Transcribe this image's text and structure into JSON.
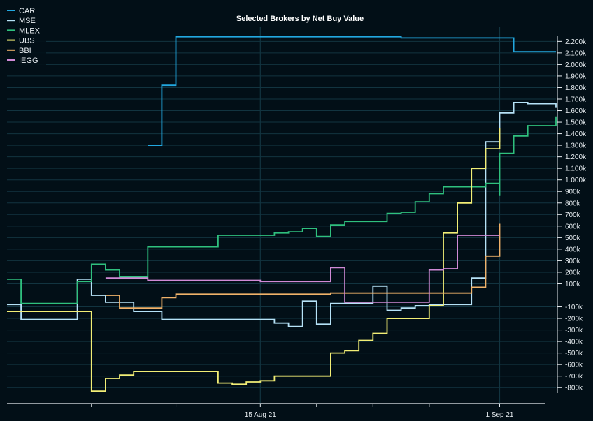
{
  "chart_data": {
    "type": "line",
    "step": true,
    "title": "Selected Brokers by Net Buy Value",
    "xlabel": "",
    "ylabel": "",
    "ylim": [
      -850,
      2350
    ],
    "xlim": [
      "2021-07-28",
      "2021-09-05"
    ],
    "y_axis_position": "right",
    "y_ticks": [
      -800,
      -700,
      -600,
      -500,
      -400,
      -300,
      -200,
      -100,
      100,
      200,
      300,
      400,
      500,
      600,
      700,
      800,
      900,
      1000,
      1100,
      1200,
      1300,
      1400,
      1500,
      1600,
      1700,
      1800,
      1900,
      2000,
      2100,
      2200
    ],
    "y_tick_labels": [
      "-800k",
      "-700k",
      "-600k",
      "-500k",
      "-400k",
      "-300k",
      "-200k",
      "-100k",
      "100k",
      "200k",
      "300k",
      "400k",
      "500k",
      "600k",
      "700k",
      "800k",
      "900k",
      "1.000k",
      "1.100k",
      "1.200k",
      "1.300k",
      "1.400k",
      "1.500k",
      "1.600k",
      "1.700k",
      "1.800k",
      "1.900k",
      "2.000k",
      "2.100k",
      "2.200k"
    ],
    "x_tick_labels": [
      {
        "date": "2021-08-15",
        "label": "15 Aug 21"
      },
      {
        "date": "2021-09-01",
        "label": "1 Sep 21"
      }
    ],
    "x_minor_ticks": [
      "2021-08-03",
      "2021-08-09",
      "2021-08-15",
      "2021-08-19",
      "2021-08-23",
      "2021-08-27",
      "2021-09-01"
    ],
    "grid": true,
    "legend": "top-left",
    "series": [
      {
        "name": "CAR",
        "color": "#22a8e0",
        "points": [
          [
            "2021-08-07",
            1300
          ],
          [
            "2021-08-08",
            1300
          ],
          [
            "2021-08-08",
            1820
          ],
          [
            "2021-08-09",
            1820
          ],
          [
            "2021-08-09",
            2240
          ],
          [
            "2021-08-25",
            2240
          ],
          [
            "2021-08-25",
            2230
          ],
          [
            "2021-09-02",
            2230
          ],
          [
            "2021-09-02",
            2110
          ],
          [
            "2021-09-05",
            2110
          ]
        ]
      },
      {
        "name": "MSE",
        "color": "#b6e2f7",
        "points": [
          [
            "2021-07-28",
            -80
          ],
          [
            "2021-07-29",
            -80
          ],
          [
            "2021-07-29",
            -210
          ],
          [
            "2021-08-02",
            -210
          ],
          [
            "2021-08-02",
            140
          ],
          [
            "2021-08-03",
            140
          ],
          [
            "2021-08-03",
            0
          ],
          [
            "2021-08-04",
            0
          ],
          [
            "2021-08-04",
            -60
          ],
          [
            "2021-08-06",
            -60
          ],
          [
            "2021-08-06",
            -140
          ],
          [
            "2021-08-08",
            -140
          ],
          [
            "2021-08-08",
            -210
          ],
          [
            "2021-08-16",
            -210
          ],
          [
            "2021-08-16",
            -240
          ],
          [
            "2021-08-17",
            -240
          ],
          [
            "2021-08-17",
            -270
          ],
          [
            "2021-08-18",
            -270
          ],
          [
            "2021-08-18",
            -50
          ],
          [
            "2021-08-19",
            -50
          ],
          [
            "2021-08-19",
            -250
          ],
          [
            "2021-08-20",
            -250
          ],
          [
            "2021-08-20",
            -70
          ],
          [
            "2021-08-23",
            -70
          ],
          [
            "2021-08-23",
            80
          ],
          [
            "2021-08-24",
            80
          ],
          [
            "2021-08-24",
            -130
          ],
          [
            "2021-08-25",
            -130
          ],
          [
            "2021-08-25",
            -110
          ],
          [
            "2021-08-26",
            -110
          ],
          [
            "2021-08-26",
            -90
          ],
          [
            "2021-08-27",
            -90
          ],
          [
            "2021-08-27",
            -80
          ],
          [
            "2021-08-30",
            -80
          ],
          [
            "2021-08-30",
            150
          ],
          [
            "2021-08-31",
            150
          ],
          [
            "2021-08-31",
            1330
          ],
          [
            "2021-09-01",
            1330
          ],
          [
            "2021-09-01",
            1580
          ],
          [
            "2021-09-02",
            1580
          ],
          [
            "2021-09-02",
            1670
          ],
          [
            "2021-09-03",
            1670
          ],
          [
            "2021-09-03",
            1660
          ],
          [
            "2021-09-05",
            1660
          ],
          [
            "2021-09-05",
            1630
          ]
        ]
      },
      {
        "name": "MLEX",
        "color": "#2fc07e",
        "points": [
          [
            "2021-07-28",
            140
          ],
          [
            "2021-07-29",
            140
          ],
          [
            "2021-07-29",
            -70
          ],
          [
            "2021-08-02",
            -70
          ],
          [
            "2021-08-02",
            120
          ],
          [
            "2021-08-03",
            120
          ],
          [
            "2021-08-03",
            270
          ],
          [
            "2021-08-04",
            270
          ],
          [
            "2021-08-04",
            220
          ],
          [
            "2021-08-05",
            220
          ],
          [
            "2021-08-05",
            160
          ],
          [
            "2021-08-07",
            160
          ],
          [
            "2021-08-07",
            420
          ],
          [
            "2021-08-12",
            420
          ],
          [
            "2021-08-12",
            520
          ],
          [
            "2021-08-16",
            520
          ],
          [
            "2021-08-16",
            540
          ],
          [
            "2021-08-17",
            540
          ],
          [
            "2021-08-17",
            550
          ],
          [
            "2021-08-18",
            550
          ],
          [
            "2021-08-18",
            580
          ],
          [
            "2021-08-19",
            580
          ],
          [
            "2021-08-19",
            510
          ],
          [
            "2021-08-20",
            510
          ],
          [
            "2021-08-20",
            610
          ],
          [
            "2021-08-21",
            610
          ],
          [
            "2021-08-21",
            640
          ],
          [
            "2021-08-24",
            640
          ],
          [
            "2021-08-24",
            710
          ],
          [
            "2021-08-25",
            710
          ],
          [
            "2021-08-25",
            720
          ],
          [
            "2021-08-26",
            720
          ],
          [
            "2021-08-26",
            810
          ],
          [
            "2021-08-27",
            810
          ],
          [
            "2021-08-27",
            880
          ],
          [
            "2021-08-28",
            880
          ],
          [
            "2021-08-28",
            940
          ],
          [
            "2021-08-31",
            940
          ],
          [
            "2021-08-31",
            970
          ],
          [
            "2021-09-01",
            970
          ],
          [
            "2021-09-01",
            860
          ],
          [
            "2021-09-01",
            860
          ],
          [
            "2021-09-01",
            1230
          ],
          [
            "2021-09-02",
            1230
          ],
          [
            "2021-09-02",
            1380
          ],
          [
            "2021-09-03",
            1380
          ],
          [
            "2021-09-03",
            1470
          ],
          [
            "2021-09-05",
            1470
          ],
          [
            "2021-09-05",
            1550
          ]
        ]
      },
      {
        "name": "UBS",
        "color": "#f2ee76",
        "points": [
          [
            "2021-07-28",
            -140
          ],
          [
            "2021-08-03",
            -140
          ],
          [
            "2021-08-03",
            -830
          ],
          [
            "2021-08-04",
            -830
          ],
          [
            "2021-08-04",
            -720
          ],
          [
            "2021-08-05",
            -720
          ],
          [
            "2021-08-05",
            -690
          ],
          [
            "2021-08-06",
            -690
          ],
          [
            "2021-08-06",
            -660
          ],
          [
            "2021-08-12",
            -660
          ],
          [
            "2021-08-12",
            -760
          ],
          [
            "2021-08-13",
            -760
          ],
          [
            "2021-08-13",
            -770
          ],
          [
            "2021-08-14",
            -770
          ],
          [
            "2021-08-14",
            -750
          ],
          [
            "2021-08-15",
            -750
          ],
          [
            "2021-08-15",
            -740
          ],
          [
            "2021-08-16",
            -740
          ],
          [
            "2021-08-16",
            -700
          ],
          [
            "2021-08-20",
            -700
          ],
          [
            "2021-08-20",
            -500
          ],
          [
            "2021-08-21",
            -500
          ],
          [
            "2021-08-21",
            -480
          ],
          [
            "2021-08-22",
            -480
          ],
          [
            "2021-08-22",
            -390
          ],
          [
            "2021-08-23",
            -390
          ],
          [
            "2021-08-23",
            -330
          ],
          [
            "2021-08-24",
            -330
          ],
          [
            "2021-08-24",
            -200
          ],
          [
            "2021-08-27",
            -200
          ],
          [
            "2021-08-27",
            -90
          ],
          [
            "2021-08-28",
            -90
          ],
          [
            "2021-08-28",
            540
          ],
          [
            "2021-08-29",
            540
          ],
          [
            "2021-08-29",
            800
          ],
          [
            "2021-08-30",
            800
          ],
          [
            "2021-08-30",
            1100
          ],
          [
            "2021-08-31",
            1100
          ],
          [
            "2021-08-31",
            1270
          ],
          [
            "2021-09-01",
            1270
          ],
          [
            "2021-09-01",
            1450
          ]
        ]
      },
      {
        "name": "BBI",
        "color": "#f0b26a",
        "points": [
          [
            "2021-08-04",
            0
          ],
          [
            "2021-08-05",
            0
          ],
          [
            "2021-08-05",
            -110
          ],
          [
            "2021-08-08",
            -110
          ],
          [
            "2021-08-08",
            -20
          ],
          [
            "2021-08-09",
            -20
          ],
          [
            "2021-08-09",
            10
          ],
          [
            "2021-08-20",
            10
          ],
          [
            "2021-08-20",
            20
          ],
          [
            "2021-08-30",
            20
          ],
          [
            "2021-08-30",
            70
          ],
          [
            "2021-08-31",
            70
          ],
          [
            "2021-08-31",
            340
          ],
          [
            "2021-09-01",
            340
          ],
          [
            "2021-09-01",
            620
          ]
        ]
      },
      {
        "name": "IEGG",
        "color": "#d08ad6",
        "points": [
          [
            "2021-08-04",
            150
          ],
          [
            "2021-08-07",
            150
          ],
          [
            "2021-08-07",
            130
          ],
          [
            "2021-08-15",
            130
          ],
          [
            "2021-08-15",
            120
          ],
          [
            "2021-08-20",
            120
          ],
          [
            "2021-08-20",
            240
          ],
          [
            "2021-08-21",
            240
          ],
          [
            "2021-08-21",
            -60
          ],
          [
            "2021-08-27",
            -60
          ],
          [
            "2021-08-27",
            220
          ],
          [
            "2021-08-28",
            220
          ],
          [
            "2021-08-28",
            230
          ],
          [
            "2021-08-29",
            230
          ],
          [
            "2021-08-29",
            520
          ],
          [
            "2021-09-01",
            520
          ]
        ]
      }
    ]
  }
}
